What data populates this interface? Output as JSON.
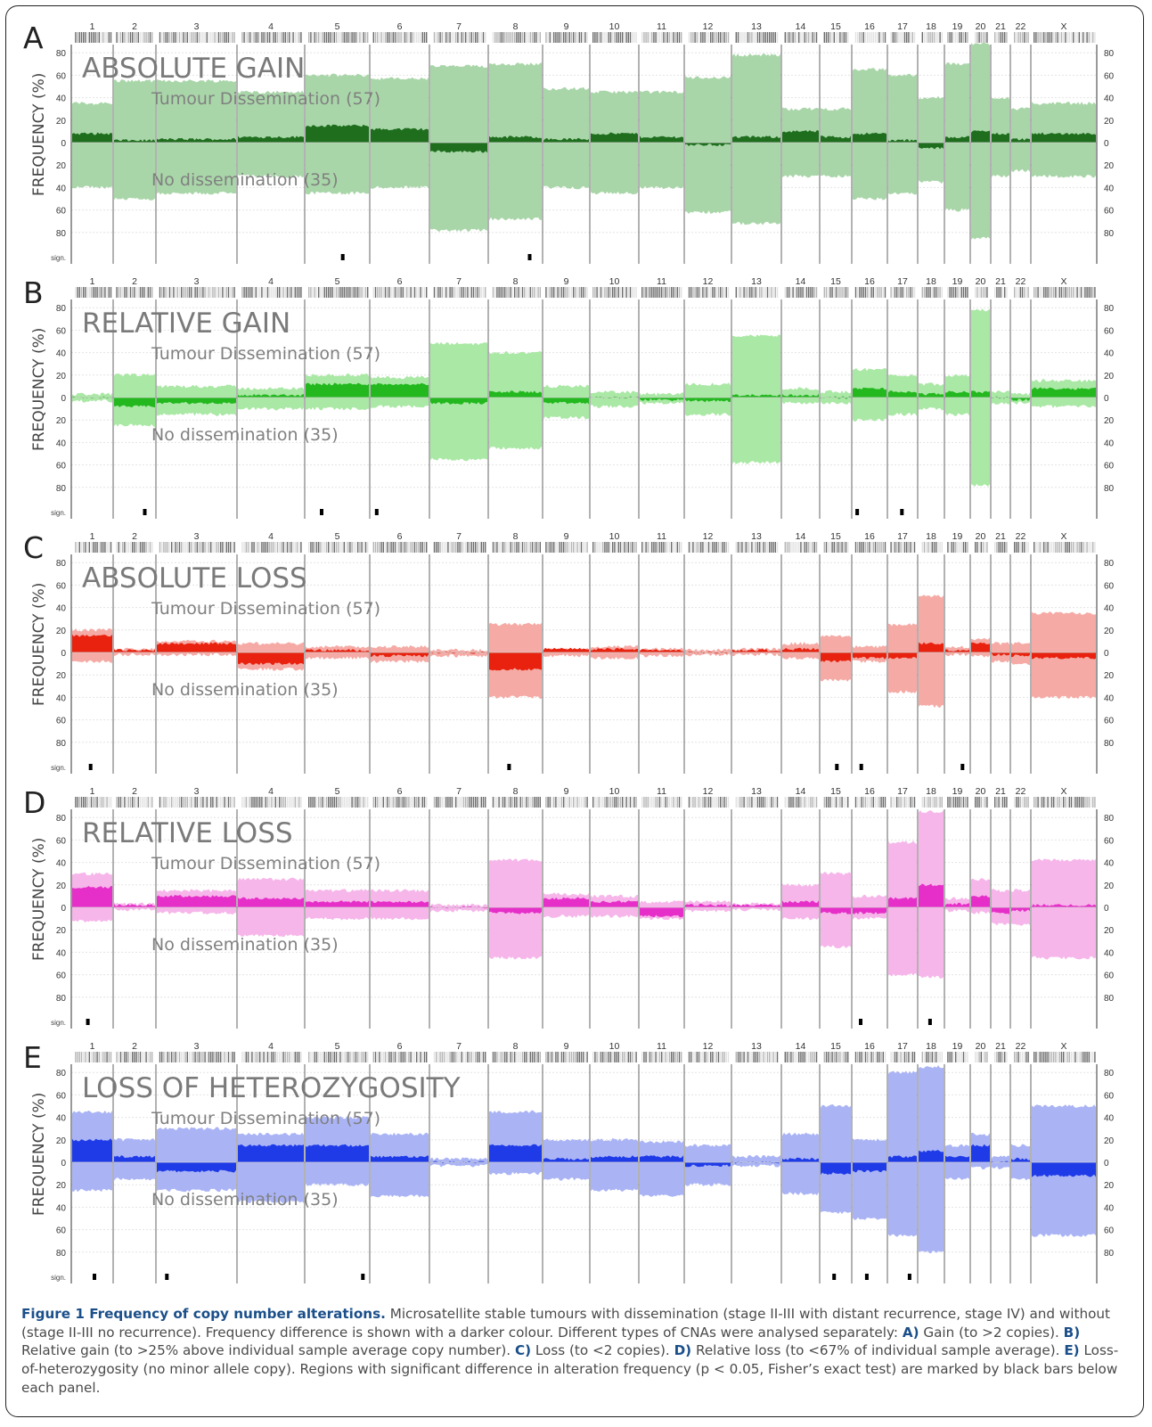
{
  "chart_data": [
    {
      "type": "area",
      "panel_letter": "A",
      "title": "ABSOLUTE GAIN",
      "ylabel": "FREQUENCY (%)",
      "top_label": "Tumour Dissemination (57)",
      "bottom_label": "No dissemination (35)",
      "sig_label": "sign.",
      "ylim": [
        -80,
        80
      ],
      "yticks": [
        80,
        60,
        40,
        20,
        0,
        20,
        40,
        60,
        80
      ],
      "chromosomes": [
        "1",
        "2",
        "3",
        "4",
        "5",
        "6",
        "7",
        "8",
        "9",
        "10",
        "11",
        "12",
        "13",
        "14",
        "15",
        "16",
        "17",
        "18",
        "19",
        "20",
        "21",
        "22",
        "X"
      ],
      "colors": {
        "light": "#a9d6a9",
        "dark": "#1e6e1e"
      },
      "series": [
        {
          "name": "Tumour Dissemination (57)",
          "values": [
            35,
            55,
            55,
            45,
            60,
            57,
            68,
            70,
            48,
            45,
            45,
            58,
            78,
            30,
            30,
            65,
            60,
            40,
            70,
            88,
            40,
            30,
            35
          ]
        },
        {
          "name": "No dissemination (35)",
          "values": [
            40,
            50,
            45,
            30,
            45,
            40,
            78,
            68,
            40,
            45,
            40,
            62,
            72,
            30,
            30,
            50,
            45,
            35,
            60,
            85,
            30,
            25,
            30
          ]
        },
        {
          "name": "Frequency difference",
          "values": [
            8,
            2,
            3,
            5,
            15,
            12,
            -8,
            5,
            3,
            8,
            5,
            -2,
            5,
            10,
            5,
            8,
            2,
            -5,
            5,
            10,
            8,
            3,
            8
          ]
        }
      ],
      "significant_chromosomes": [
        "5",
        "8"
      ]
    },
    {
      "type": "area",
      "panel_letter": "B",
      "title": "RELATIVE GAIN",
      "ylabel": "FREQUENCY (%)",
      "top_label": "Tumour Dissemination (57)",
      "bottom_label": "No dissemination (35)",
      "sig_label": "sign.",
      "ylim": [
        -80,
        80
      ],
      "yticks": [
        80,
        60,
        40,
        20,
        0,
        20,
        40,
        60,
        80
      ],
      "chromosomes": [
        "1",
        "2",
        "3",
        "4",
        "5",
        "6",
        "7",
        "8",
        "9",
        "10",
        "11",
        "12",
        "13",
        "14",
        "15",
        "16",
        "17",
        "18",
        "19",
        "20",
        "21",
        "22",
        "X"
      ],
      "colors": {
        "light": "#aae8a5",
        "dark": "#22b81e"
      },
      "series": [
        {
          "name": "Tumour Dissemination (57)",
          "values": [
            3,
            20,
            10,
            8,
            20,
            18,
            48,
            40,
            10,
            5,
            3,
            12,
            55,
            8,
            5,
            25,
            20,
            12,
            20,
            78,
            5,
            3,
            15
          ]
        },
        {
          "name": "No dissemination (35)",
          "values": [
            3,
            25,
            15,
            10,
            10,
            8,
            55,
            45,
            18,
            8,
            5,
            15,
            58,
            5,
            5,
            20,
            15,
            10,
            15,
            78,
            5,
            5,
            8
          ]
        },
        {
          "name": "Frequency difference",
          "values": [
            0,
            -8,
            -5,
            2,
            12,
            12,
            -5,
            5,
            -5,
            0,
            -2,
            -3,
            2,
            2,
            0,
            8,
            5,
            3,
            5,
            5,
            0,
            -2,
            8
          ]
        }
      ],
      "significant_chromosomes": [
        "2",
        "5",
        "6",
        "16",
        "17"
      ]
    },
    {
      "type": "area",
      "panel_letter": "C",
      "title": "ABSOLUTE LOSS",
      "ylabel": "FREQUENCY (%)",
      "top_label": "Tumour Dissemination (57)",
      "bottom_label": "No dissemination (35)",
      "sig_label": "sign.",
      "ylim": [
        -80,
        80
      ],
      "yticks": [
        80,
        60,
        40,
        20,
        0,
        20,
        40,
        60,
        80
      ],
      "chromosomes": [
        "1",
        "2",
        "3",
        "4",
        "5",
        "6",
        "7",
        "8",
        "9",
        "10",
        "11",
        "12",
        "13",
        "14",
        "15",
        "16",
        "17",
        "18",
        "19",
        "20",
        "21",
        "22",
        "X"
      ],
      "colors": {
        "light": "#f5aaa5",
        "dark": "#e8220e"
      },
      "series": [
        {
          "name": "Tumour Dissemination (57)",
          "values": [
            20,
            3,
            10,
            8,
            5,
            5,
            2,
            25,
            3,
            5,
            3,
            2,
            3,
            8,
            15,
            5,
            25,
            50,
            5,
            12,
            8,
            8,
            35
          ]
        },
        {
          "name": "No dissemination (35)",
          "values": [
            8,
            2,
            2,
            15,
            5,
            8,
            3,
            40,
            3,
            5,
            3,
            2,
            2,
            5,
            25,
            8,
            35,
            48,
            2,
            3,
            8,
            10,
            40
          ]
        },
        {
          "name": "Frequency difference",
          "values": [
            15,
            2,
            8,
            -10,
            2,
            -3,
            0,
            -15,
            3,
            3,
            2,
            0,
            2,
            3,
            -8,
            -5,
            -5,
            8,
            2,
            8,
            -2,
            -3,
            -5
          ]
        }
      ],
      "significant_chromosomes": [
        "1",
        "8",
        "15",
        "16",
        "19"
      ]
    },
    {
      "type": "area",
      "panel_letter": "D",
      "title": "RELATIVE LOSS",
      "ylabel": "FREQUENCY (%)",
      "top_label": "Tumour Dissemination (57)",
      "bottom_label": "No dissemination (35)",
      "sig_label": "sign.",
      "ylim": [
        -80,
        80
      ],
      "yticks": [
        80,
        60,
        40,
        20,
        0,
        20,
        40,
        60,
        80
      ],
      "chromosomes": [
        "1",
        "2",
        "3",
        "4",
        "5",
        "6",
        "7",
        "8",
        "9",
        "10",
        "11",
        "12",
        "13",
        "14",
        "15",
        "16",
        "17",
        "18",
        "19",
        "20",
        "21",
        "22",
        "X"
      ],
      "colors": {
        "light": "#f6b6ea",
        "dark": "#e62fc8"
      },
      "series": [
        {
          "name": "Tumour Dissemination (57)",
          "values": [
            30,
            3,
            15,
            25,
            15,
            15,
            2,
            42,
            12,
            10,
            5,
            5,
            3,
            20,
            30,
            10,
            58,
            85,
            8,
            25,
            15,
            15,
            42
          ]
        },
        {
          "name": "No dissemination (35)",
          "values": [
            12,
            2,
            5,
            25,
            10,
            10,
            3,
            45,
            8,
            8,
            10,
            3,
            2,
            10,
            35,
            10,
            60,
            62,
            3,
            5,
            15,
            15,
            45
          ]
        },
        {
          "name": "Frequency difference",
          "values": [
            18,
            2,
            10,
            8,
            5,
            5,
            0,
            -5,
            8,
            5,
            -8,
            2,
            2,
            5,
            -5,
            -5,
            8,
            20,
            3,
            10,
            -5,
            -3,
            2
          ]
        }
      ],
      "significant_chromosomes": [
        "1",
        "16",
        "18"
      ]
    },
    {
      "type": "area",
      "panel_letter": "E",
      "title": "LOSS OF HETEROZYGOSITY",
      "ylabel": "FREQUENCY (%)",
      "top_label": "Tumour Dissemination (57)",
      "bottom_label": "No dissemination (35)",
      "sig_label": "sign.",
      "ylim": [
        -80,
        80
      ],
      "yticks": [
        80,
        60,
        40,
        20,
        0,
        20,
        40,
        60,
        80
      ],
      "chromosomes": [
        "1",
        "2",
        "3",
        "4",
        "5",
        "6",
        "7",
        "8",
        "9",
        "10",
        "11",
        "12",
        "13",
        "14",
        "15",
        "16",
        "17",
        "18",
        "19",
        "20",
        "21",
        "22",
        "X"
      ],
      "colors": {
        "light": "#aab4f5",
        "dark": "#1f3be8"
      },
      "series": [
        {
          "name": "Tumour Dissemination (57)",
          "values": [
            45,
            20,
            30,
            25,
            40,
            25,
            3,
            45,
            20,
            20,
            18,
            15,
            5,
            25,
            50,
            20,
            80,
            85,
            15,
            25,
            5,
            15,
            50
          ]
        },
        {
          "name": "No dissemination (35)",
          "values": [
            25,
            15,
            25,
            35,
            20,
            30,
            3,
            10,
            15,
            25,
            30,
            20,
            3,
            28,
            45,
            50,
            65,
            80,
            15,
            5,
            5,
            15,
            65
          ]
        },
        {
          "name": "Frequency difference",
          "values": [
            20,
            5,
            -8,
            15,
            15,
            5,
            0,
            15,
            3,
            5,
            5,
            -3,
            0,
            3,
            -10,
            -8,
            5,
            10,
            5,
            15,
            0,
            3,
            -12
          ]
        }
      ],
      "significant_chromosomes": [
        "1",
        "3",
        "5",
        "15",
        "16",
        "17"
      ]
    }
  ],
  "caption": {
    "title": "Figure 1 Frequency of copy number alterations.",
    "s1": " Microsatellite stable tumours with dissemination (stage II-III with distant recurrence, stage IV) and without (stage II-III no recurrence). Frequency difference is shown with a darker colour. Different types of CNAs were analysed separately: ",
    "kA": "A)",
    "tA": " Gain (to >2 copies). ",
    "kB": "B)",
    "tB": " Relative gain (to >25% above individual sample average copy number). ",
    "kC": "C)",
    "tC": " Loss (to <2 copies). ",
    "kD": "D)",
    "tD": " Relative loss (to <67% of individual sample average). ",
    "kE": "E)",
    "tE": " Loss-of-heterozygosity (no minor allele copy). Regions with significant difference in alteration frequency (p < 0.05, Fisher’s exact test) are marked by black bars below each panel."
  }
}
